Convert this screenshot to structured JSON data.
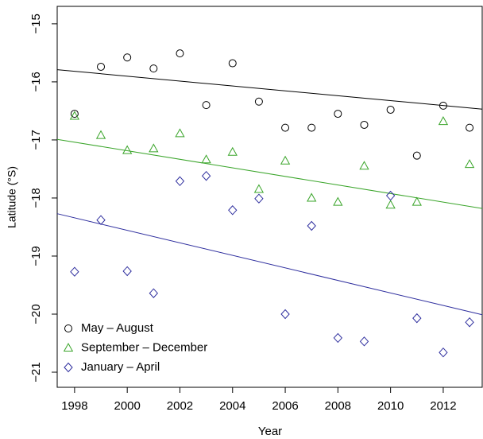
{
  "chart_data": {
    "type": "scatter",
    "xlabel": "Year",
    "ylabel": "Latitude (°S)",
    "x": [
      1998,
      1999,
      2000,
      2001,
      2002,
      2003,
      2004,
      2005,
      2006,
      2007,
      2008,
      2009,
      2010,
      2011,
      2012,
      2013
    ],
    "series": [
      {
        "name": "May – August",
        "color": "#000000",
        "marker": "circle",
        "values": [
          -16.55,
          -15.74,
          -15.58,
          -15.77,
          -15.51,
          -16.4,
          -15.68,
          -16.34,
          -16.79,
          -16.79,
          -16.55,
          -16.74,
          -16.48,
          -17.27,
          -16.41,
          -16.79
        ],
        "trend": [
          -15.79,
          -16.47
        ]
      },
      {
        "name": "September – December",
        "color": "#3aa52a",
        "marker": "triangle",
        "values": [
          -16.59,
          -16.92,
          -17.18,
          -17.15,
          -16.89,
          -17.34,
          -17.21,
          -17.85,
          -17.36,
          -18.0,
          -18.07,
          -17.45,
          -18.12,
          -18.07,
          -16.68,
          -17.42
        ],
        "trend": [
          -16.99,
          -18.18
        ]
      },
      {
        "name": "January – April",
        "color": "#2e2e9e",
        "marker": "diamond",
        "values": [
          -19.27,
          -18.38,
          -19.26,
          -19.64,
          -17.71,
          -17.62,
          -18.21,
          -18.01,
          -20.0,
          -18.48,
          -20.41,
          -20.47,
          -17.96,
          -20.07,
          -20.66,
          -20.14
        ],
        "trend": [
          -18.27,
          -20.01
        ]
      }
    ],
    "xlim": [
      1997.34,
      2013.48
    ],
    "ylim": [
      -21.26,
      -14.7
    ],
    "xticks": [
      1998,
      2000,
      2002,
      2004,
      2006,
      2008,
      2010,
      2012
    ],
    "yticks": [
      {
        "value": -15,
        "label": "−15"
      },
      {
        "value": -16,
        "label": "−16"
      },
      {
        "value": -17,
        "label": "−17"
      },
      {
        "value": -18,
        "label": "−18"
      },
      {
        "value": -19,
        "label": "−19"
      },
      {
        "value": -20,
        "label": "−20"
      },
      {
        "value": -21,
        "label": "−21"
      }
    ],
    "grid": false,
    "legend": "bottom-left"
  }
}
